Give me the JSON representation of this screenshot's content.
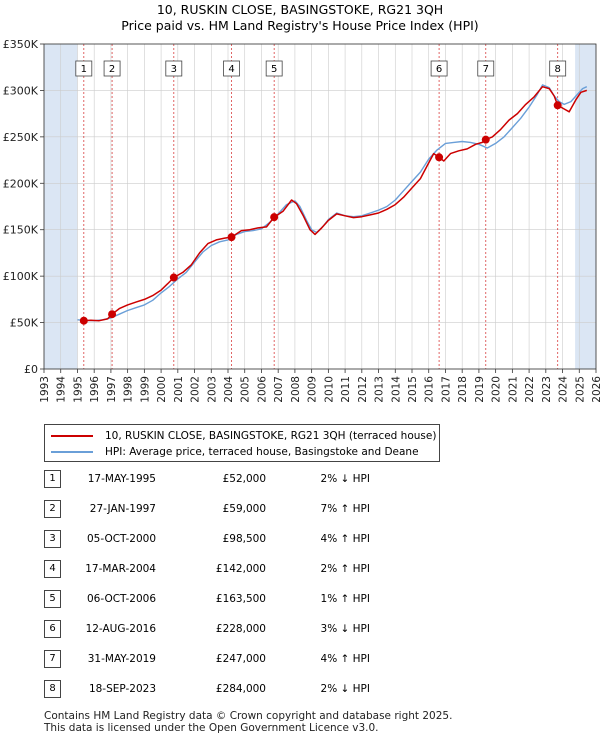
{
  "title": {
    "line1": "10, RUSKIN CLOSE, BASINGSTOKE, RG21 3QH",
    "line2": "Price paid vs. HM Land Registry's House Price Index (HPI)"
  },
  "colors": {
    "red": "#cc0000",
    "blue": "#6a9fd8",
    "band": "#dbe6f4",
    "grid": "#cccccc"
  },
  "chart_data": {
    "type": "line",
    "xlim": [
      1993,
      2026
    ],
    "ylim": [
      0,
      350000
    ],
    "x_ticks": [
      "1993",
      "1994",
      "1995",
      "1996",
      "1997",
      "1998",
      "1999",
      "2000",
      "2001",
      "2002",
      "2003",
      "2004",
      "2005",
      "2006",
      "2007",
      "2008",
      "2009",
      "2010",
      "2011",
      "2012",
      "2013",
      "2014",
      "2015",
      "2016",
      "2017",
      "2018",
      "2019",
      "2020",
      "2021",
      "2022",
      "2023",
      "2024",
      "2025",
      "2026"
    ],
    "y_ticks": [
      {
        "value": 0,
        "label": "£0"
      },
      {
        "value": 50000,
        "label": "£50K"
      },
      {
        "value": 100000,
        "label": "£100K"
      },
      {
        "value": 150000,
        "label": "£150K"
      },
      {
        "value": 200000,
        "label": "£200K"
      },
      {
        "value": 250000,
        "label": "£250K"
      },
      {
        "value": 300000,
        "label": "£300K"
      },
      {
        "value": 350000,
        "label": "£350K"
      }
    ],
    "shaded_before": 1995.0,
    "shaded_after": 2024.75,
    "series": [
      {
        "name": "10, RUSKIN CLOSE, BASINGSTOKE, RG21 3QH (terraced house)",
        "color": "#cc0000",
        "points": [
          [
            1995.38,
            52000
          ],
          [
            1995.8,
            52500
          ],
          [
            1996.3,
            52000
          ],
          [
            1996.8,
            54000
          ],
          [
            1997.07,
            59000
          ],
          [
            1997.5,
            65000
          ],
          [
            1998.0,
            69000
          ],
          [
            1998.5,
            72000
          ],
          [
            1999.0,
            75000
          ],
          [
            1999.5,
            79000
          ],
          [
            2000.0,
            85000
          ],
          [
            2000.4,
            92000
          ],
          [
            2000.76,
            98500
          ],
          [
            2001.3,
            104000
          ],
          [
            2001.8,
            112000
          ],
          [
            2002.3,
            125000
          ],
          [
            2002.8,
            135000
          ],
          [
            2003.3,
            139000
          ],
          [
            2003.8,
            141000
          ],
          [
            2004.21,
            142000
          ],
          [
            2004.8,
            149000
          ],
          [
            2005.3,
            150000
          ],
          [
            2005.8,
            152000
          ],
          [
            2006.3,
            153000
          ],
          [
            2006.76,
            163500
          ],
          [
            2007.3,
            170000
          ],
          [
            2007.8,
            182000
          ],
          [
            2008.1,
            178000
          ],
          [
            2008.5,
            165000
          ],
          [
            2008.9,
            150000
          ],
          [
            2009.2,
            145000
          ],
          [
            2009.6,
            152000
          ],
          [
            2010.0,
            160000
          ],
          [
            2010.5,
            167000
          ],
          [
            2011.0,
            165000
          ],
          [
            2011.5,
            163000
          ],
          [
            2012.0,
            164000
          ],
          [
            2012.5,
            166000
          ],
          [
            2013.0,
            168000
          ],
          [
            2013.5,
            172000
          ],
          [
            2014.0,
            177000
          ],
          [
            2014.5,
            185000
          ],
          [
            2015.0,
            195000
          ],
          [
            2015.5,
            205000
          ],
          [
            2016.0,
            222000
          ],
          [
            2016.3,
            232000
          ],
          [
            2016.62,
            228000
          ],
          [
            2016.9,
            224000
          ],
          [
            2017.3,
            232000
          ],
          [
            2017.8,
            235000
          ],
          [
            2018.3,
            237000
          ],
          [
            2018.8,
            242000
          ],
          [
            2019.2,
            244000
          ],
          [
            2019.41,
            247000
          ],
          [
            2019.8,
            250000
          ],
          [
            2020.3,
            258000
          ],
          [
            2020.8,
            268000
          ],
          [
            2021.3,
            275000
          ],
          [
            2021.8,
            285000
          ],
          [
            2022.3,
            293000
          ],
          [
            2022.8,
            304000
          ],
          [
            2023.2,
            302000
          ],
          [
            2023.5,
            294000
          ],
          [
            2023.71,
            284000
          ],
          [
            2024.1,
            280000
          ],
          [
            2024.4,
            277000
          ],
          [
            2024.8,
            290000
          ],
          [
            2025.1,
            298000
          ],
          [
            2025.45,
            300000
          ]
        ]
      },
      {
        "name": "HPI: Average price, terraced house, Basingstoke and Deane",
        "color": "#6a9fd8",
        "points": [
          [
            1995.0,
            53000
          ],
          [
            1995.5,
            52500
          ],
          [
            1996.0,
            52000
          ],
          [
            1996.5,
            53000
          ],
          [
            1997.0,
            55000
          ],
          [
            1997.5,
            59000
          ],
          [
            1998.0,
            63000
          ],
          [
            1998.5,
            66000
          ],
          [
            1999.0,
            69000
          ],
          [
            1999.5,
            74000
          ],
          [
            2000.0,
            82000
          ],
          [
            2000.5,
            89000
          ],
          [
            2001.0,
            97000
          ],
          [
            2001.5,
            104000
          ],
          [
            2002.0,
            115000
          ],
          [
            2002.5,
            126000
          ],
          [
            2003.0,
            133000
          ],
          [
            2003.5,
            137000
          ],
          [
            2004.0,
            139000
          ],
          [
            2004.5,
            145000
          ],
          [
            2005.0,
            148000
          ],
          [
            2005.5,
            149000
          ],
          [
            2006.0,
            151000
          ],
          [
            2006.5,
            158000
          ],
          [
            2007.0,
            167000
          ],
          [
            2007.5,
            177000
          ],
          [
            2008.0,
            181000
          ],
          [
            2008.3,
            175000
          ],
          [
            2008.7,
            160000
          ],
          [
            2009.0,
            150000
          ],
          [
            2009.3,
            147000
          ],
          [
            2009.7,
            154000
          ],
          [
            2010.0,
            161000
          ],
          [
            2010.5,
            168000
          ],
          [
            2011.0,
            165000
          ],
          [
            2011.5,
            164000
          ],
          [
            2012.0,
            165000
          ],
          [
            2012.5,
            168000
          ],
          [
            2013.0,
            171000
          ],
          [
            2013.5,
            175000
          ],
          [
            2014.0,
            182000
          ],
          [
            2014.5,
            192000
          ],
          [
            2015.0,
            202000
          ],
          [
            2015.5,
            212000
          ],
          [
            2016.0,
            226000
          ],
          [
            2016.5,
            236000
          ],
          [
            2017.0,
            243000
          ],
          [
            2017.5,
            244000
          ],
          [
            2018.0,
            245000
          ],
          [
            2018.5,
            244000
          ],
          [
            2019.0,
            242000
          ],
          [
            2019.5,
            238000
          ],
          [
            2020.0,
            243000
          ],
          [
            2020.5,
            250000
          ],
          [
            2021.0,
            260000
          ],
          [
            2021.5,
            270000
          ],
          [
            2022.0,
            282000
          ],
          [
            2022.5,
            296000
          ],
          [
            2022.8,
            306000
          ],
          [
            2023.2,
            303000
          ],
          [
            2023.5,
            294000
          ],
          [
            2023.8,
            288000
          ],
          [
            2024.1,
            285000
          ],
          [
            2024.5,
            288000
          ],
          [
            2024.9,
            296000
          ],
          [
            2025.2,
            302000
          ],
          [
            2025.45,
            304000
          ]
        ]
      }
    ],
    "sales": [
      {
        "num": "1",
        "x": 1995.38,
        "price": 52000
      },
      {
        "num": "2",
        "x": 1997.07,
        "price": 59000
      },
      {
        "num": "3",
        "x": 2000.76,
        "price": 98500
      },
      {
        "num": "4",
        "x": 2004.21,
        "price": 142000
      },
      {
        "num": "5",
        "x": 2006.76,
        "price": 163500
      },
      {
        "num": "6",
        "x": 2016.62,
        "price": 228000
      },
      {
        "num": "7",
        "x": 2019.41,
        "price": 247000
      },
      {
        "num": "8",
        "x": 2023.71,
        "price": 284000
      }
    ]
  },
  "legend": {
    "property_label": "10, RUSKIN CLOSE, BASINGSTOKE, RG21 3QH (terraced house)",
    "hpi_label": "HPI: Average price, terraced house, Basingstoke and Deane"
  },
  "table": [
    {
      "num": "1",
      "date": "17-MAY-1995",
      "price": "£52,000",
      "hpi": "2% ↓ HPI"
    },
    {
      "num": "2",
      "date": "27-JAN-1997",
      "price": "£59,000",
      "hpi": "7% ↑ HPI"
    },
    {
      "num": "3",
      "date": "05-OCT-2000",
      "price": "£98,500",
      "hpi": "4% ↑ HPI"
    },
    {
      "num": "4",
      "date": "17-MAR-2004",
      "price": "£142,000",
      "hpi": "2% ↑ HPI"
    },
    {
      "num": "5",
      "date": "06-OCT-2006",
      "price": "£163,500",
      "hpi": "1% ↑ HPI"
    },
    {
      "num": "6",
      "date": "12-AUG-2016",
      "price": "£228,000",
      "hpi": "3% ↓ HPI"
    },
    {
      "num": "7",
      "date": "31-MAY-2019",
      "price": "£247,000",
      "hpi": "4% ↑ HPI"
    },
    {
      "num": "8",
      "date": "18-SEP-2023",
      "price": "£284,000",
      "hpi": "2% ↓ HPI"
    }
  ],
  "footer": {
    "line1": "Contains HM Land Registry data © Crown copyright and database right 2025.",
    "line2": "This data is licensed under the Open Government Licence v3.0."
  }
}
